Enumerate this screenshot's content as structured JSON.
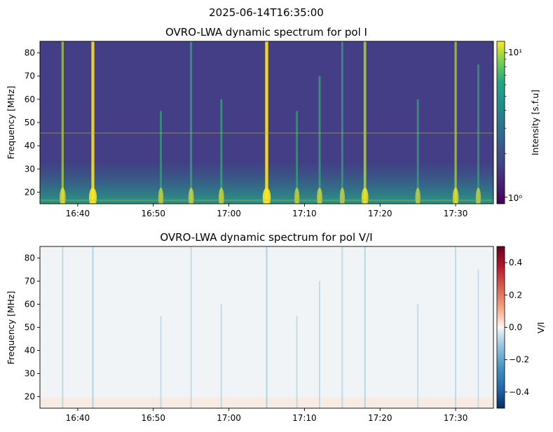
{
  "chart_data": {
    "suptitle": "2025-06-14T16:35:00",
    "panels": [
      {
        "type": "heatmap",
        "title": "OVRO-LWA dynamic spectrum for pol I",
        "ylabel": "Frequency [MHz]",
        "xlim": [
          "16:35",
          "17:35"
        ],
        "ylim": [
          15,
          85
        ],
        "xticks": [
          "16:40",
          "16:50",
          "17:00",
          "17:10",
          "17:20",
          "17:30"
        ],
        "yticks": [
          20,
          30,
          40,
          50,
          60,
          70,
          80
        ],
        "colormap": "viridis",
        "colorbar": {
          "label": "Intensity [s.f.u]",
          "scale": "log",
          "range": [
            0.9,
            12
          ],
          "tick_labels": [
            "10⁰",
            "10¹"
          ]
        },
        "bursts": [
          {
            "time": "16:38",
            "strength": 0.65,
            "fmax": 85
          },
          {
            "time": "16:42",
            "strength": 0.95,
            "fmax": 85
          },
          {
            "time": "16:51",
            "strength": 0.5,
            "fmax": 55
          },
          {
            "time": "16:55",
            "strength": 0.55,
            "fmax": 85
          },
          {
            "time": "16:59",
            "strength": 0.55,
            "fmax": 60
          },
          {
            "time": "17:05",
            "strength": 1.0,
            "fmax": 85
          },
          {
            "time": "17:09",
            "strength": 0.5,
            "fmax": 55
          },
          {
            "time": "17:12",
            "strength": 0.55,
            "fmax": 70
          },
          {
            "time": "17:15",
            "strength": 0.5,
            "fmax": 85
          },
          {
            "time": "17:18",
            "strength": 0.8,
            "fmax": 85
          },
          {
            "time": "17:25",
            "strength": 0.5,
            "fmax": 60
          },
          {
            "time": "17:30",
            "strength": 0.65,
            "fmax": 85
          },
          {
            "time": "17:33",
            "strength": 0.5,
            "fmax": 75
          }
        ]
      },
      {
        "type": "heatmap",
        "title": "OVRO-LWA dynamic spectrum for pol V/I",
        "ylabel": "Frequency [MHz]",
        "xlim": [
          "16:35",
          "17:35"
        ],
        "ylim": [
          15,
          85
        ],
        "xticks": [
          "16:40",
          "16:50",
          "17:00",
          "17:10",
          "17:20",
          "17:30"
        ],
        "yticks": [
          20,
          30,
          40,
          50,
          60,
          70,
          80
        ],
        "colormap": "RdBu_r",
        "colorbar": {
          "label": "V/I",
          "scale": "linear",
          "range": [
            -0.5,
            0.5
          ],
          "ticks": [
            0.4,
            0.2,
            0.0,
            -0.2,
            -0.4
          ],
          "tick_labels": [
            "0.4",
            "0.2",
            "0.0",
            "−0.2",
            "−0.4"
          ]
        }
      }
    ]
  }
}
